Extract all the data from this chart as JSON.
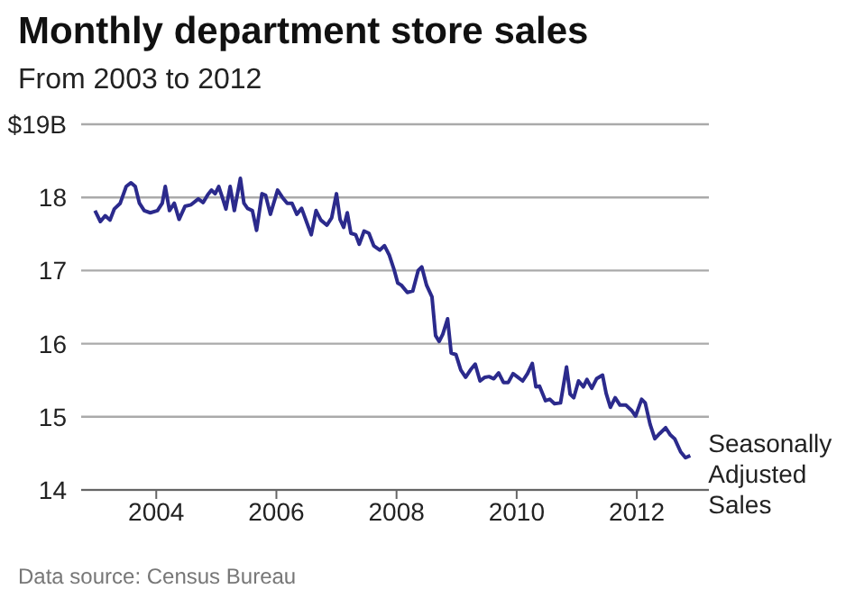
{
  "chart_data": {
    "type": "line",
    "title": "Monthly department store sales",
    "subtitle": "From 2003 to 2012",
    "x": [
      2002.98,
      2003.07,
      2003.15,
      2003.23,
      2003.3,
      2003.4,
      2003.5,
      2003.58,
      2003.65,
      2003.72,
      2003.8,
      2003.9,
      2004.02,
      2004.1,
      2004.15,
      2004.22,
      2004.3,
      2004.38,
      2004.48,
      2004.58,
      2004.7,
      2004.78,
      2004.86,
      2004.92,
      2004.98,
      2005.04,
      2005.1,
      2005.16,
      2005.23,
      2005.3,
      2005.4,
      2005.46,
      2005.52,
      2005.6,
      2005.67,
      2005.76,
      2005.82,
      2005.9,
      2006.02,
      2006.1,
      2006.18,
      2006.26,
      2006.34,
      2006.42,
      2006.5,
      2006.58,
      2006.66,
      2006.74,
      2006.84,
      2006.92,
      2007.0,
      2007.06,
      2007.12,
      2007.18,
      2007.24,
      2007.32,
      2007.38,
      2007.46,
      2007.54,
      2007.62,
      2007.72,
      2007.8,
      2007.88,
      2007.96,
      2008.02,
      2008.08,
      2008.18,
      2008.27,
      2008.36,
      2008.42,
      2008.5,
      2008.59,
      2008.65,
      2008.71,
      2008.77,
      2008.85,
      2008.91,
      2008.99,
      2009.07,
      2009.15,
      2009.23,
      2009.31,
      2009.39,
      2009.47,
      2009.54,
      2009.62,
      2009.7,
      2009.78,
      2009.86,
      2009.94,
      2010.02,
      2010.1,
      2010.18,
      2010.26,
      2010.32,
      2010.38,
      2010.48,
      2010.55,
      2010.63,
      2010.73,
      2010.83,
      2010.89,
      2010.95,
      2011.03,
      2011.11,
      2011.17,
      2011.25,
      2011.33,
      2011.43,
      2011.49,
      2011.56,
      2011.64,
      2011.72,
      2011.82,
      2011.92,
      2011.98,
      2012.08,
      2012.14,
      2012.22,
      2012.3,
      2012.38,
      2012.48,
      2012.56,
      2012.63,
      2012.73,
      2012.81,
      2012.89
    ],
    "series": [
      {
        "name": "Seasonally Adjusted Sales",
        "color": "#2b2a8c",
        "values": [
          17.82,
          17.67,
          17.75,
          17.69,
          17.84,
          17.92,
          18.15,
          18.2,
          18.15,
          17.92,
          17.82,
          17.79,
          17.82,
          17.92,
          18.15,
          17.82,
          17.92,
          17.7,
          17.88,
          17.9,
          17.98,
          17.93,
          18.04,
          18.1,
          18.05,
          18.15,
          18.0,
          17.84,
          18.15,
          17.82,
          18.26,
          17.92,
          17.85,
          17.82,
          17.55,
          18.05,
          18.03,
          17.77,
          18.1,
          18.0,
          17.92,
          17.92,
          17.77,
          17.85,
          17.67,
          17.49,
          17.82,
          17.69,
          17.62,
          17.72,
          18.05,
          17.7,
          17.59,
          17.79,
          17.51,
          17.49,
          17.36,
          17.54,
          17.51,
          17.34,
          17.28,
          17.34,
          17.21,
          17.01,
          16.83,
          16.8,
          16.7,
          16.72,
          17.0,
          17.05,
          16.8,
          16.64,
          16.11,
          16.03,
          16.13,
          16.34,
          15.87,
          15.85,
          15.64,
          15.54,
          15.64,
          15.72,
          15.49,
          15.54,
          15.55,
          15.52,
          15.6,
          15.47,
          15.47,
          15.59,
          15.54,
          15.49,
          15.59,
          15.73,
          15.41,
          15.42,
          15.22,
          15.24,
          15.18,
          15.19,
          15.68,
          15.31,
          15.26,
          15.49,
          15.41,
          15.51,
          15.39,
          15.52,
          15.57,
          15.32,
          15.13,
          15.26,
          15.16,
          15.16,
          15.08,
          15.01,
          15.24,
          15.19,
          14.9,
          14.7,
          14.77,
          14.85,
          14.75,
          14.7,
          14.52,
          14.44,
          14.47
        ]
      }
    ],
    "xlim": [
      2002.75,
      2013.2
    ],
    "xticks": [
      2004,
      2006,
      2008,
      2010,
      2012
    ],
    "ylim": [
      14,
      19
    ],
    "yticks": [
      14,
      15,
      16,
      17,
      18,
      {
        "value": 19,
        "label": "$19B"
      }
    ],
    "grid": "y",
    "annotations": [
      "Data source: Census Bureau"
    ]
  }
}
